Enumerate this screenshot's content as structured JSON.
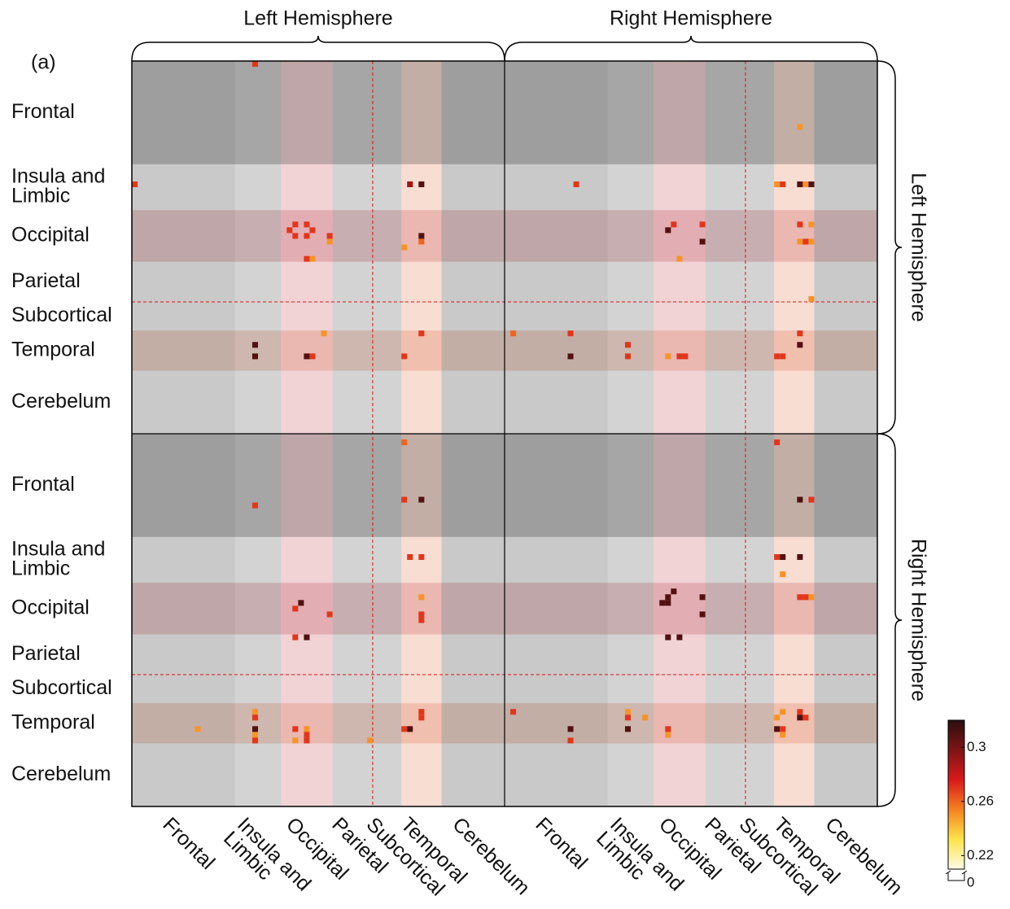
{
  "chart_data": {
    "type": "heatmap",
    "panel_label": "(a)",
    "hemispheres": [
      "Left Hemisphere",
      "Right Hemisphere"
    ],
    "regions": [
      {
        "name": [
          "Frontal"
        ],
        "size": 18,
        "col_shade": "#c9c9c9",
        "row_shade": "#c9c9c9"
      },
      {
        "name": [
          "Insula and",
          "Limbic"
        ],
        "size": 8,
        "col_shade": "#d3d3d3",
        "row_shade": null
      },
      {
        "name": [
          "Occipital"
        ],
        "size": 9,
        "col_shade": "#f1d3d6",
        "row_shade": "#f1d3d6"
      },
      {
        "name": [
          "Parietal"
        ],
        "size": 7,
        "col_shade": "#d3d3d3",
        "row_shade": null
      },
      {
        "name": [
          "Subcortical"
        ],
        "size": 5,
        "col_shade": "#d3d3d3",
        "row_shade": null
      },
      {
        "name": [
          "Temporal"
        ],
        "size": 7,
        "col_shade": "#f8ddd3",
        "row_shade": "#f8ddd3"
      },
      {
        "name": [
          "Cerebelum"
        ],
        "size": 11,
        "col_shade": "#c9c9c9",
        "row_shade": null
      }
    ],
    "cells": {
      "cols": [
        21,
        0,
        48,
        50,
        28,
        30,
        27,
        31,
        28,
        30,
        34,
        34,
        50,
        50,
        47,
        30,
        31,
        33,
        50,
        21,
        21,
        30,
        31,
        47,
        116,
        77,
        112,
        113,
        116,
        117,
        118,
        94,
        93,
        99,
        99,
        95,
        116,
        118,
        116,
        117,
        118,
        118,
        66,
        76,
        76,
        86,
        86,
        93,
        95,
        96,
        116,
        116,
        112,
        113,
        47,
        21,
        47,
        50,
        48,
        50,
        28,
        29,
        34,
        28,
        30,
        50,
        50,
        50,
        11,
        21,
        21,
        21,
        21,
        21,
        28,
        28,
        30,
        30,
        30,
        41,
        47,
        48,
        50,
        50,
        112,
        116,
        118,
        112,
        113,
        116,
        113,
        94,
        93,
        92,
        93,
        99,
        99,
        93,
        95,
        116,
        117,
        118,
        66,
        76,
        76,
        86,
        86,
        86,
        89,
        93,
        93,
        113,
        112,
        116,
        116,
        117,
        112,
        113,
        113
      ],
      "rows": [
        0,
        21,
        21,
        21,
        28,
        28,
        29,
        29,
        30,
        30,
        30,
        31,
        30,
        31,
        32,
        34,
        34,
        47,
        47,
        49,
        51,
        51,
        51,
        51,
        11,
        21,
        21,
        21,
        21,
        21,
        21,
        28,
        29,
        28,
        31,
        34,
        28,
        28,
        31,
        31,
        31,
        41,
        47,
        47,
        51,
        49,
        51,
        51,
        51,
        51,
        47,
        49,
        51,
        51,
        66,
        77,
        76,
        76,
        86,
        86,
        95,
        94,
        96,
        100,
        100,
        93,
        96,
        97,
        116,
        113,
        114,
        116,
        117,
        118,
        116,
        118,
        116,
        117,
        118,
        118,
        116,
        116,
        113,
        114,
        66,
        76,
        76,
        86,
        86,
        86,
        89,
        92,
        93,
        94,
        94,
        93,
        96,
        100,
        100,
        93,
        93,
        93,
        113,
        116,
        118,
        113,
        114,
        116,
        114,
        116,
        117,
        113,
        114,
        113,
        114,
        114,
        116,
        116,
        117
      ],
      "values": [
        0.27,
        0.27,
        0.29,
        0.31,
        0.27,
        0.27,
        0.27,
        0.27,
        0.27,
        0.27,
        0.27,
        0.25,
        0.31,
        0.26,
        0.25,
        0.27,
        0.25,
        0.25,
        0.27,
        0.31,
        0.31,
        0.31,
        0.27,
        0.27,
        0.25,
        0.27,
        0.25,
        0.27,
        0.31,
        0.25,
        0.31,
        0.27,
        0.31,
        0.27,
        0.31,
        0.25,
        0.27,
        0.25,
        0.25,
        0.27,
        0.25,
        0.25,
        0.26,
        0.27,
        0.31,
        0.27,
        0.27,
        0.25,
        0.27,
        0.27,
        0.27,
        0.31,
        0.27,
        0.27,
        0.26,
        0.27,
        0.27,
        0.31,
        0.27,
        0.27,
        0.27,
        0.31,
        0.27,
        0.27,
        0.31,
        0.25,
        0.27,
        0.27,
        0.25,
        0.25,
        0.27,
        0.31,
        0.25,
        0.27,
        0.27,
        0.25,
        0.25,
        0.27,
        0.27,
        0.25,
        0.27,
        0.31,
        0.27,
        0.27,
        0.27,
        0.31,
        0.27,
        0.27,
        0.31,
        0.31,
        0.25,
        0.31,
        0.31,
        0.31,
        0.31,
        0.31,
        0.31,
        0.31,
        0.31,
        0.27,
        0.27,
        0.25,
        0.27,
        0.31,
        0.27,
        0.25,
        0.27,
        0.31,
        0.25,
        0.27,
        0.25,
        0.25,
        0.25,
        0.27,
        0.31,
        0.27,
        0.31,
        0.27,
        0.25
      ]
    },
    "clim": [
      0.21,
      0.32
    ],
    "colormap": [
      "#fffbe6",
      "#ffe34a",
      "#f5821f",
      "#d9191a",
      "#7f1414",
      "#2b0f0f"
    ],
    "colorbar_ticks": [
      0.22,
      0.26,
      0.3
    ],
    "colorbar_break_tick": 0,
    "divider_color": "#e01010"
  }
}
